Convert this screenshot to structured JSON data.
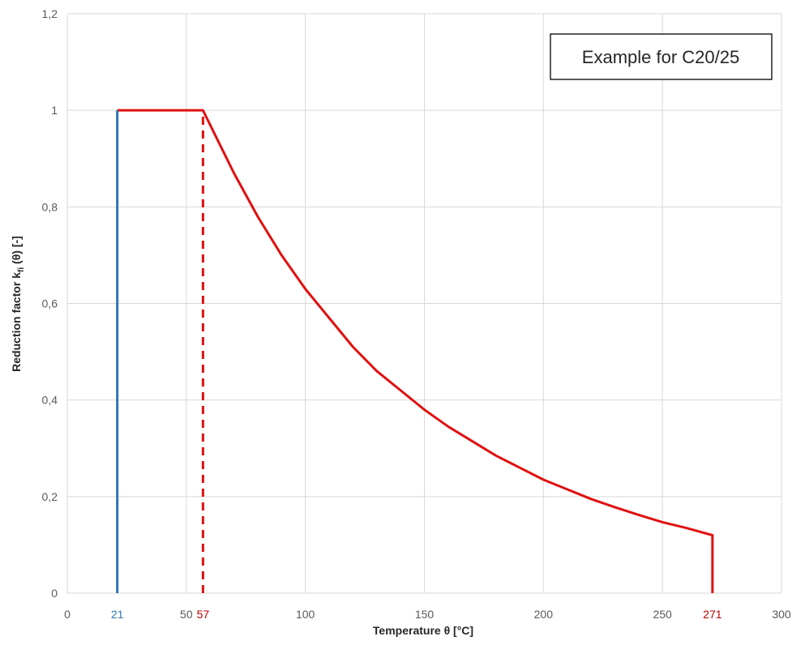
{
  "chart_data": {
    "type": "line",
    "title": "",
    "xlabel": "Temperature θ [°C]",
    "ylabel": "Reduction factor kfi (θ) [-]",
    "ylabel_main": "Reduction factor k",
    "ylabel_sub": "fi",
    "ylabel_tail": " (θ) [-]",
    "xlim": [
      0,
      300
    ],
    "ylim": [
      0,
      1.2
    ],
    "x_ticks": [
      0,
      50,
      100,
      150,
      200,
      250,
      300
    ],
    "x_tick_labels": [
      "0",
      "50",
      "100",
      "150",
      "200",
      "250",
      "300"
    ],
    "y_ticks": [
      0,
      0.2,
      0.4,
      0.6,
      0.8,
      1.0,
      1.2
    ],
    "y_tick_labels": [
      "0",
      "0,2",
      "0,4",
      "0,6",
      "0,8",
      "1",
      "1,2"
    ],
    "grid": true,
    "annotation_box": "Example for C20/25",
    "special_x_markers": [
      {
        "x": 21,
        "label": "21",
        "color": "#2e75b6"
      },
      {
        "x": 57,
        "label": "57",
        "color": "#c00000"
      },
      {
        "x": 271,
        "label": "271",
        "color": "#c00000"
      }
    ],
    "series": [
      {
        "color": "#e01010",
        "style": "solid",
        "x": [
          21,
          57,
          60,
          70,
          80,
          90,
          100,
          110,
          120,
          130,
          140,
          150,
          160,
          170,
          180,
          190,
          200,
          210,
          220,
          230,
          240,
          250,
          260,
          271,
          271
        ],
        "y": [
          1.0,
          1.0,
          0.97,
          0.87,
          0.78,
          0.7,
          0.63,
          0.57,
          0.51,
          0.46,
          0.42,
          0.38,
          0.345,
          0.315,
          0.285,
          0.26,
          0.235,
          0.215,
          0.195,
          0.178,
          0.162,
          0.147,
          0.135,
          0.12,
          0.0
        ]
      },
      {
        "color": "#2e75b6",
        "style": "solid",
        "x": [
          21,
          21
        ],
        "y": [
          0,
          1.0
        ]
      },
      {
        "color": "#e01010",
        "style": "dashed",
        "x": [
          57,
          57
        ],
        "y": [
          0,
          1.0
        ]
      }
    ]
  }
}
